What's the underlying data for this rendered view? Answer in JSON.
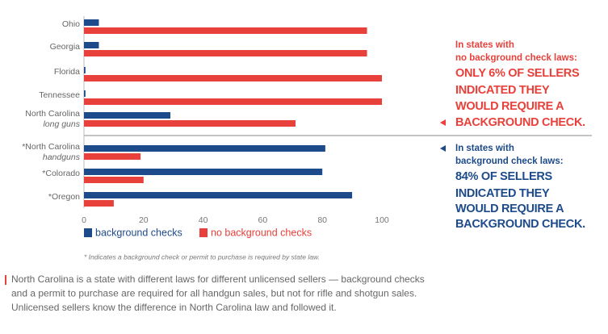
{
  "chart_data": {
    "type": "hbar",
    "categories": [
      "Ohio",
      "Georgia",
      "Florida",
      "Tennessee",
      "North Carolina",
      "*North Carolina",
      "*Colorado",
      "*Oregon"
    ],
    "sublabels": [
      null,
      null,
      null,
      null,
      "long guns",
      "handguns",
      null,
      null
    ],
    "series": [
      {
        "name": "background checks",
        "color": "#1d4a8a",
        "values": [
          5,
          5,
          0.5,
          0.5,
          29,
          81,
          80,
          90
        ]
      },
      {
        "name": "no background checks",
        "color": "#e8403a",
        "values": [
          95,
          95,
          100,
          100,
          71,
          19,
          20,
          10
        ]
      }
    ],
    "xlim": [
      0,
      100
    ],
    "xticks": [
      0,
      20,
      40,
      60,
      80,
      100
    ],
    "annotations": [
      {
        "intro": [
          "In states with",
          "no background check laws:"
        ],
        "headline": [
          "ONLY 6% OF SELLERS",
          "INDICATED THEY",
          "WOULD REQUIRE A",
          "BACKGROUND CHECK."
        ],
        "color": "#e8403a"
      },
      {
        "intro": [
          "In states with",
          "background check laws:"
        ],
        "headline": [
          "84% OF SELLERS",
          "INDICATED THEY",
          "WOULD REQUIRE A",
          "BACKGROUND CHECK."
        ],
        "color": "#1d4a8a"
      }
    ],
    "footnote": "* Indicates a background check or permit to purchase is required by state law.",
    "paragraph": [
      "North Carolina is a state with different laws for different unlicensed sellers — background checks",
      "and a permit to purchase are required for all handgun sales, but not for rifle and shotgun sales.",
      "Unlicensed sellers know the difference in North Carolina law and followed it."
    ]
  }
}
